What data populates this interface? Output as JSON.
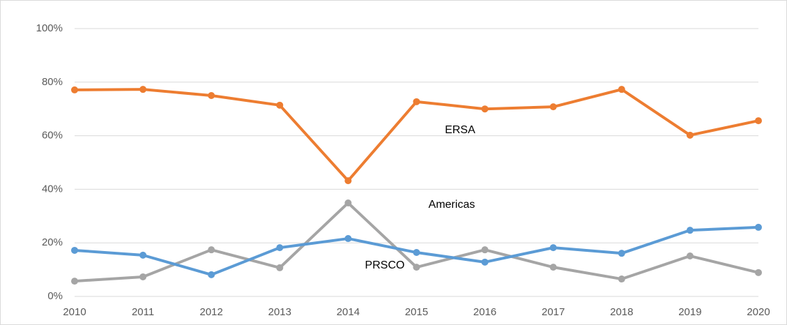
{
  "chart_data": {
    "type": "line",
    "categories": [
      "2010",
      "2011",
      "2012",
      "2013",
      "2014",
      "2015",
      "2016",
      "2017",
      "2018",
      "2019",
      "2020"
    ],
    "series": [
      {
        "name": "ERSA",
        "color": "#ed7d31",
        "values": [
          77.1,
          77.3,
          75,
          71.4,
          43.2,
          72.7,
          70,
          70.8,
          77.3,
          60.2,
          65.6
        ]
      },
      {
        "name": "Americas",
        "color": "#a5a5a5",
        "values": [
          5.7,
          7.3,
          17.4,
          10.7,
          34.9,
          10.9,
          17.4,
          10.9,
          6.5,
          15.1,
          8.9
        ]
      },
      {
        "name": "PRSCO",
        "color": "#5b9bd5",
        "values": [
          17.2,
          15.4,
          8.1,
          18.2,
          21.6,
          16.4,
          12.8,
          18.2,
          16.1,
          24.7,
          25.8
        ]
      }
    ],
    "ylim": [
      0,
      100
    ],
    "yticks": [
      {
        "value": 0,
        "label": "0%"
      },
      {
        "value": 20,
        "label": "20%"
      },
      {
        "value": 40,
        "label": "40%"
      },
      {
        "value": 60,
        "label": "60%"
      },
      {
        "value": 80,
        "label": "80%"
      },
      {
        "value": 100,
        "label": "100%"
      }
    ],
    "grid": true
  }
}
